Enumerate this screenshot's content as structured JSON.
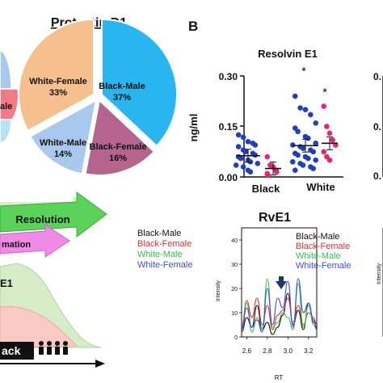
{
  "panel_b_letter": "B",
  "pie": {
    "title": "Protectin D1",
    "slice_labels": [
      {
        "name": "Black-Male",
        "pct": "37%"
      },
      {
        "name": "Black-Female",
        "pct": "16%"
      },
      {
        "name": "White-Male",
        "pct": "14%"
      },
      {
        "name": "White-Female",
        "pct": "33%"
      }
    ],
    "left_partial_label": "ale"
  },
  "scatter": {
    "title": "Resolvin E1",
    "ylabel": "ng/ml",
    "yticks": [
      "0.30",
      "0.15",
      "0.00"
    ],
    "groups": [
      "Black",
      "White"
    ],
    "sig_marks": [
      "*",
      "*"
    ],
    "right_partial_ticks": [
      "0.",
      "0.",
      "0."
    ]
  },
  "flow": {
    "resolution_label": "Resolution",
    "inflammation_partial": "mation",
    "curve_label_partial": "E1",
    "black_box_partial": "ack",
    "legend": [
      "Black-Male",
      "Black-Female",
      "White-Male",
      "White-Female"
    ]
  },
  "chrom": {
    "title": "RvE1",
    "ylabel": "Intensity",
    "xlabel": "RT",
    "yticks": [
      "40",
      "30",
      "20",
      "10",
      "0"
    ],
    "xticks": [
      "2.6",
      "2.8",
      "3.0",
      "3.2"
    ],
    "legend": [
      "Black-Male",
      "Black-Female",
      "White-Male",
      "White-Female"
    ],
    "right_partial_ylabel": "Intensity"
  },
  "colors": {
    "black_male": "#29b6f0",
    "black_female": "#b5648e",
    "white_male": "#a9c8ee",
    "white_female": "#f6c08e",
    "black_dots": "#1f3fbf",
    "white_dots": "#e8237a",
    "chrom_black": "#111111",
    "chrom_red": "#e23030",
    "chrom_green": "#36c24a",
    "chrom_blue": "#3e4ed8"
  },
  "chart_data": [
    {
      "type": "pie",
      "title": "Protectin D1",
      "categories": [
        "Black-Male",
        "Black-Female",
        "White-Male",
        "White-Female"
      ],
      "values": [
        37,
        16,
        14,
        33
      ]
    },
    {
      "type": "scatter",
      "title": "Resolvin E1",
      "ylabel": "ng/ml",
      "ylim": [
        0,
        0.3
      ],
      "categories": [
        "Black",
        "White"
      ],
      "series": [
        {
          "name": "Black-Male",
          "values": [
            0.125,
            0.118,
            0.105,
            0.1,
            0.095,
            0.09,
            0.08,
            0.075,
            0.07,
            0.065,
            0.06,
            0.055,
            0.05,
            0.045,
            0.04,
            0.035,
            0.03,
            0.02,
            0.015
          ]
        },
        {
          "name": "Black-Female",
          "values": [
            0.06,
            0.035,
            0.03,
            0.02,
            0.015,
            0.01,
            0.005
          ]
        },
        {
          "name": "White-Male",
          "values": [
            0.24,
            0.205,
            0.2,
            0.185,
            0.16,
            0.145,
            0.135,
            0.12,
            0.115,
            0.1,
            0.095,
            0.09,
            0.085,
            0.08,
            0.075,
            0.07,
            0.065,
            0.06,
            0.055,
            0.05,
            0.045,
            0.04,
            0.035,
            0.03,
            0.025,
            0.02
          ]
        },
        {
          "name": "White-Female",
          "values": [
            0.21,
            0.15,
            0.13,
            0.11,
            0.095,
            0.075,
            0.06,
            0.05
          ]
        }
      ],
      "means": {
        "Black-Male": 0.063,
        "Black-Female": 0.025,
        "White-Male": 0.093,
        "White-Female": 0.1
      }
    },
    {
      "type": "line",
      "title": "RvE1",
      "xlabel": "RT",
      "ylabel": "Intensity",
      "xlim": [
        2.55,
        3.28
      ],
      "ylim": [
        0,
        45
      ],
      "x": [
        2.55,
        2.6,
        2.65,
        2.7,
        2.75,
        2.8,
        2.85,
        2.9,
        2.95,
        3.0,
        3.05,
        3.1,
        3.15,
        3.2,
        3.25,
        3.28
      ],
      "series": [
        {
          "name": "Black-Male",
          "values": [
            2,
            8,
            4,
            13,
            3,
            6,
            1,
            4,
            9,
            18,
            5,
            11,
            3,
            14,
            6,
            4
          ]
        },
        {
          "name": "Black-Female",
          "values": [
            4,
            15,
            8,
            16,
            5,
            13,
            3,
            9,
            11,
            16,
            6,
            13,
            5,
            10,
            8,
            5
          ]
        },
        {
          "name": "White-Male",
          "values": [
            2,
            14,
            2,
            8,
            3,
            24,
            4,
            6,
            10,
            8,
            3,
            22,
            4,
            13,
            5,
            3
          ]
        },
        {
          "name": "White-Female",
          "values": [
            3,
            12,
            4,
            7,
            2,
            20,
            5,
            16,
            12,
            23,
            4,
            24,
            10,
            14,
            7,
            3
          ]
        }
      ]
    }
  ]
}
